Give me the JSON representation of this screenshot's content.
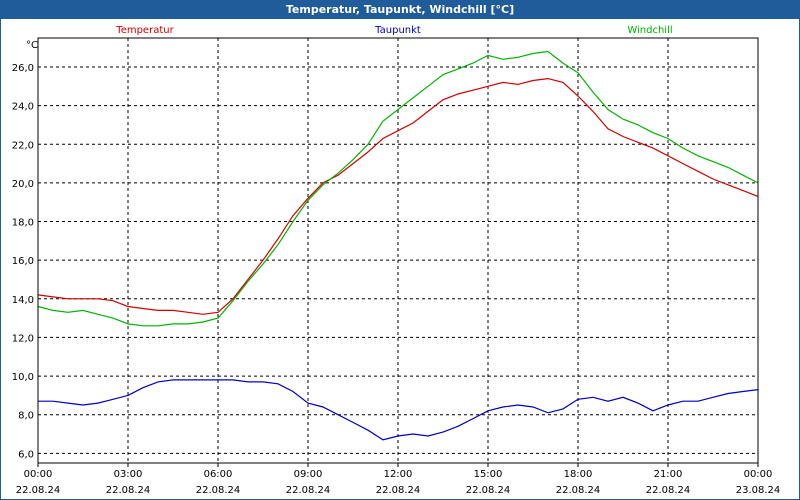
{
  "window": {
    "title": "Temperatur, Taupunkt, Windchill [°C]"
  },
  "chart_data": {
    "type": "line",
    "title": "Temperatur, Taupunkt, Windchill [°C]",
    "unit_label": "°C",
    "ylim": [
      5.5,
      27.5
    ],
    "xlim": [
      0,
      24
    ],
    "grid": true,
    "y_ticks": [
      "6,0",
      "8,0",
      "10,0",
      "12,0",
      "14,0",
      "16,0",
      "18,0",
      "20,0",
      "22,0",
      "24,0",
      "26,0"
    ],
    "x_ticks": [
      {
        "time": "00:00",
        "date": "22.08.24"
      },
      {
        "time": "03:00",
        "date": "22.08.24"
      },
      {
        "time": "06:00",
        "date": "22.08.24"
      },
      {
        "time": "09:00",
        "date": "22.08.24"
      },
      {
        "time": "12:00",
        "date": "22.08.24"
      },
      {
        "time": "15:00",
        "date": "22.08.24"
      },
      {
        "time": "18:00",
        "date": "22.08.24"
      },
      {
        "time": "21:00",
        "date": "22.08.24"
      },
      {
        "time": "00:00",
        "date": "23.08.24"
      }
    ],
    "x_hours": [
      0,
      0.5,
      1,
      1.5,
      2,
      2.5,
      3,
      3.5,
      4,
      4.5,
      5,
      5.5,
      6,
      6.5,
      7,
      7.5,
      8,
      8.5,
      9,
      9.5,
      10,
      10.5,
      11,
      11.5,
      12,
      12.5,
      13,
      13.5,
      14,
      14.5,
      15,
      15.5,
      16,
      16.5,
      17,
      17.5,
      18,
      18.5,
      19,
      19.5,
      20,
      20.5,
      21,
      21.5,
      22,
      22.5,
      23,
      23.5,
      24
    ],
    "series": [
      {
        "name": "Temperatur",
        "color": "#d40000",
        "values": [
          14.2,
          14.1,
          14.0,
          14.0,
          14.0,
          13.9,
          13.6,
          13.5,
          13.4,
          13.4,
          13.3,
          13.2,
          13.3,
          14.0,
          15.0,
          16.0,
          17.1,
          18.3,
          19.2,
          20.0,
          20.4,
          21.0,
          21.6,
          22.3,
          22.7,
          23.1,
          23.7,
          24.3,
          24.6,
          24.8,
          25.0,
          25.2,
          25.1,
          25.3,
          25.4,
          25.2,
          24.5,
          23.7,
          22.8,
          22.4,
          22.1,
          21.8,
          21.4,
          21.0,
          20.6,
          20.2,
          19.9,
          19.6,
          19.3
        ]
      },
      {
        "name": "Taupunkt",
        "color": "#0000c8",
        "values": [
          8.7,
          8.7,
          8.6,
          8.5,
          8.6,
          8.8,
          9.0,
          9.4,
          9.7,
          9.8,
          9.8,
          9.8,
          9.8,
          9.8,
          9.7,
          9.7,
          9.6,
          9.2,
          8.6,
          8.4,
          8.0,
          7.6,
          7.2,
          6.7,
          6.9,
          7.0,
          6.9,
          7.1,
          7.4,
          7.8,
          8.2,
          8.4,
          8.5,
          8.4,
          8.1,
          8.3,
          8.8,
          8.9,
          8.7,
          8.9,
          8.6,
          8.2,
          8.5,
          8.7,
          8.7,
          8.9,
          9.1,
          9.2,
          9.3
        ]
      },
      {
        "name": "Windchill",
        "color": "#00b400",
        "values": [
          13.6,
          13.4,
          13.3,
          13.4,
          13.2,
          13.0,
          12.7,
          12.6,
          12.6,
          12.7,
          12.7,
          12.8,
          13.0,
          13.9,
          14.9,
          15.8,
          16.8,
          18.0,
          19.1,
          19.9,
          20.5,
          21.2,
          22.0,
          23.2,
          23.8,
          24.4,
          25.0,
          25.6,
          25.9,
          26.2,
          26.6,
          26.4,
          26.5,
          26.7,
          26.8,
          26.2,
          25.7,
          24.7,
          23.8,
          23.3,
          23.0,
          22.6,
          22.3,
          21.8,
          21.4,
          21.1,
          20.8,
          20.4,
          20.0
        ]
      }
    ]
  }
}
